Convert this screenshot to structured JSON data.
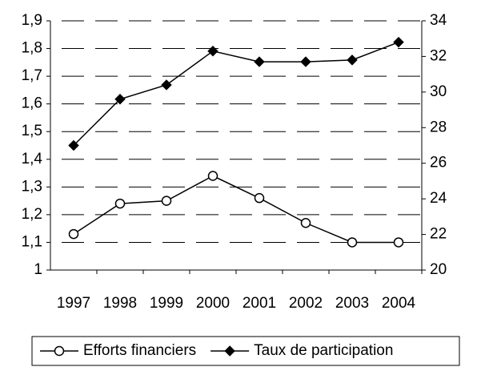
{
  "chart_data": {
    "type": "line",
    "categories": [
      "1997",
      "1998",
      "1999",
      "2000",
      "2001",
      "2002",
      "2003",
      "2004"
    ],
    "series": [
      {
        "name": "Efforts financiers",
        "color": "#000000",
        "marker": "circle",
        "values": [
          1.13,
          1.24,
          1.25,
          1.34,
          1.26,
          1.17,
          1.1,
          1.1
        ]
      },
      {
        "name": "Taux de participation",
        "color": "#000000",
        "marker": "diamond",
        "axis": "y2",
        "values": [
          27.0,
          29.6,
          30.4,
          32.3,
          31.7,
          31.7,
          31.8,
          32.8
        ]
      }
    ],
    "ylim": [
      1,
      1.9
    ],
    "yticks": [
      1,
      {
        "value": 1.1,
        "label": "1,1"
      },
      {
        "value": 1.2,
        "label": "1,2"
      },
      {
        "value": 1.3,
        "label": "1,3"
      },
      {
        "value": 1.4,
        "label": "1,4"
      },
      {
        "value": 1.5,
        "label": "1,5"
      },
      {
        "value": 1.6,
        "label": "1,6"
      },
      {
        "value": 1.7,
        "label": "1,7"
      },
      {
        "value": 1.8,
        "label": "1,8"
      },
      {
        "value": 1.9,
        "label": "1,9"
      }
    ],
    "y2lim": [
      20,
      34
    ],
    "y2ticks": [
      20,
      22,
      24,
      26,
      28,
      30,
      32,
      34
    ],
    "grid": true,
    "legend": "bottom"
  }
}
